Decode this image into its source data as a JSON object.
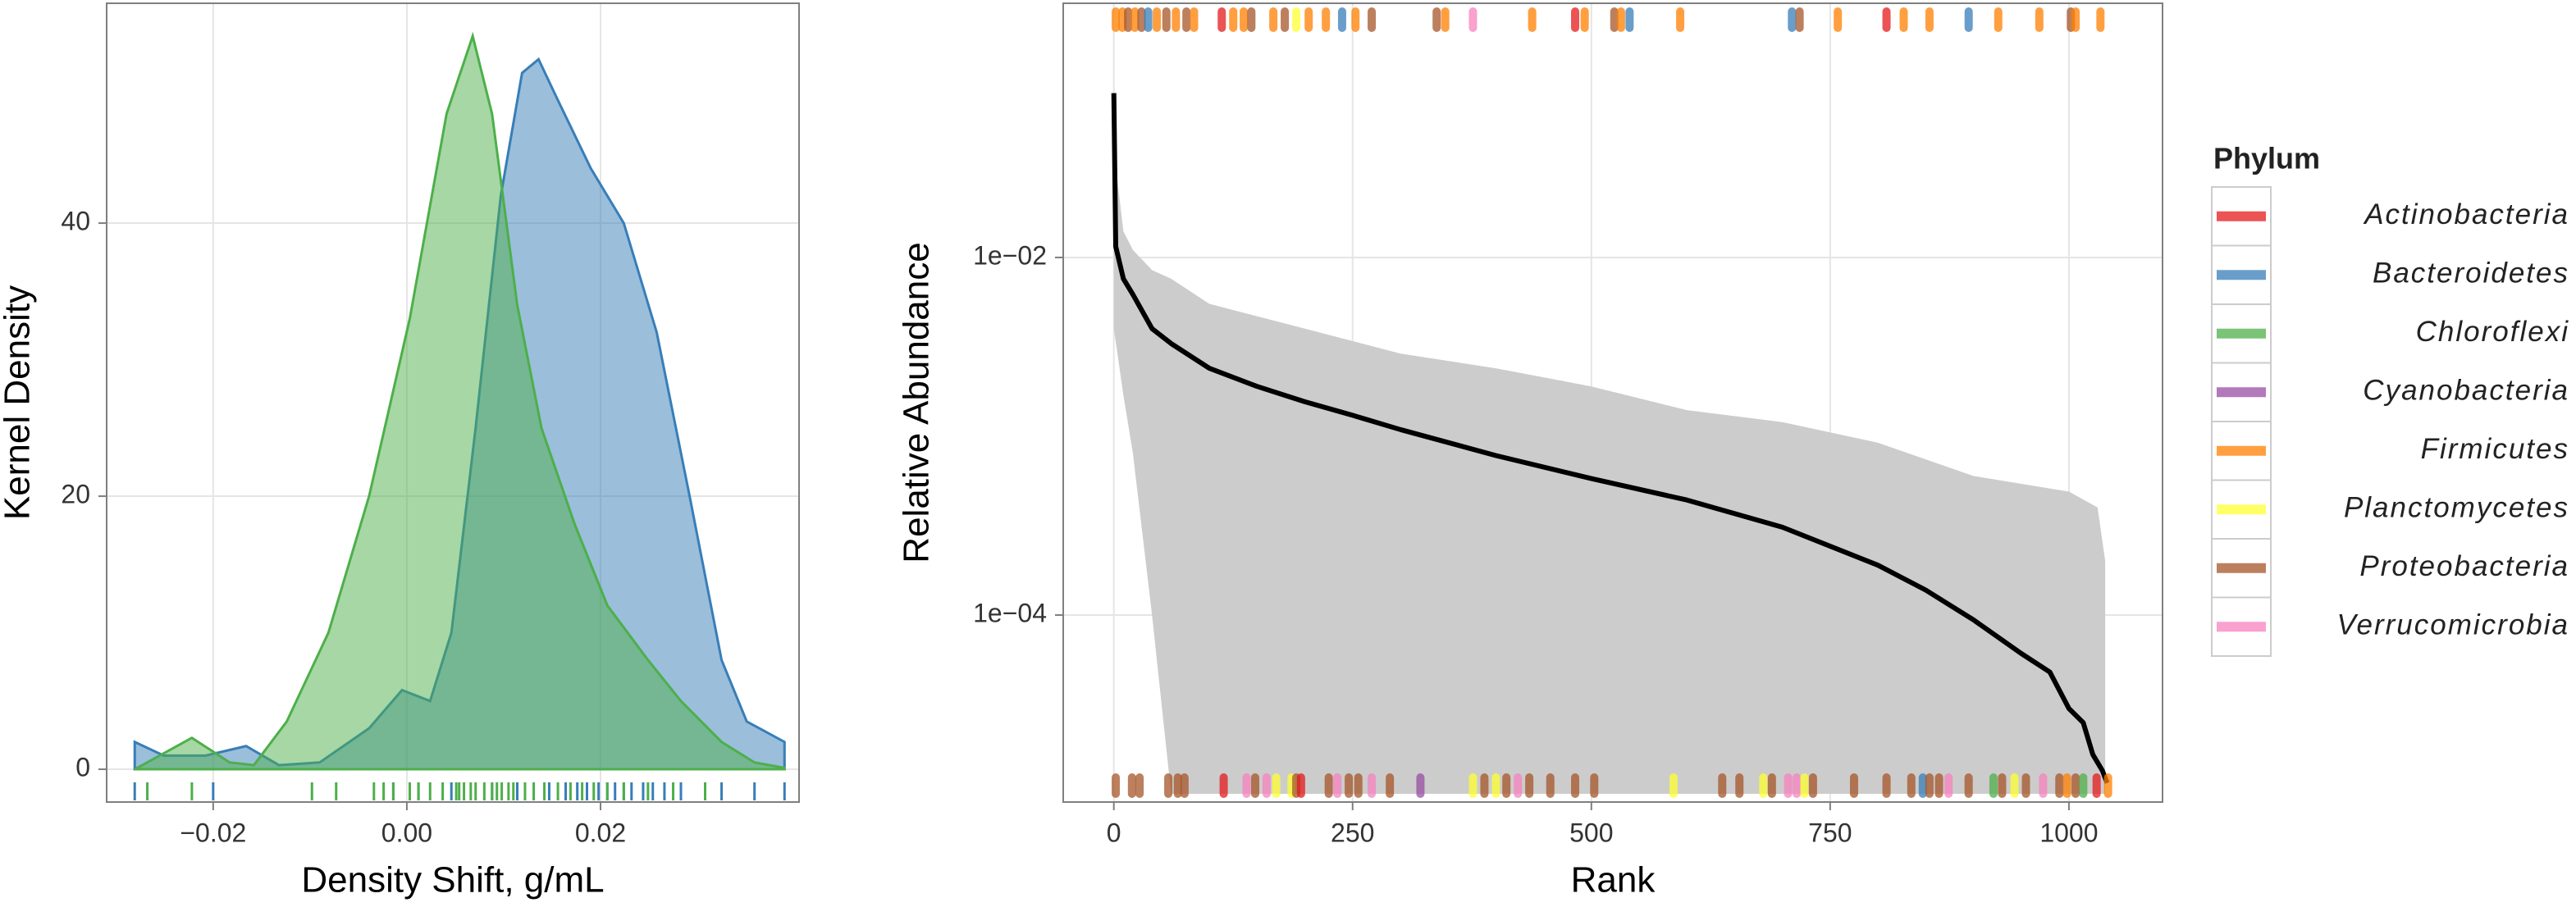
{
  "chart_data": [
    {
      "type": "density",
      "x_label": "Density Shift, g/mL",
      "y_label": "Kernel Density",
      "xlim": [
        -0.031,
        0.0405
      ],
      "ylim": [
        -2.4,
        56.1
      ],
      "xticks": [
        {
          "value": -0.02,
          "label": "−0.02"
        },
        {
          "value": 0,
          "label": "0.00"
        },
        {
          "value": 0.02,
          "label": "0.02"
        }
      ],
      "yticks": [
        0,
        20,
        40
      ],
      "grid": true,
      "series": [
        {
          "color": "#377eb8",
          "x": [
            -0.0281,
            -0.0251,
            -0.0208,
            -0.0166,
            -0.0132,
            -0.009,
            -0.0039,
            -0.0005,
            0.0024,
            0.0046,
            0.0071,
            0.0097,
            0.0119,
            0.0136,
            0.0156,
            0.019,
            0.0224,
            0.0258,
            0.0292,
            0.0325,
            0.0351,
            0.039
          ],
          "values": [
            2,
            1,
            1,
            1.7,
            0.3,
            0.5,
            3,
            5.8,
            5,
            10,
            25,
            42,
            51,
            52,
            49,
            44,
            40,
            32,
            20,
            8,
            3.5,
            2
          ],
          "rug": [
            -0.0281,
            -0.02,
            -0.0014,
            0.0012,
            0.0046,
            0.0088,
            0.0114,
            0.0147,
            0.0164,
            0.0176,
            0.0186,
            0.0198,
            0.0207,
            0.0215,
            0.0224,
            0.0232,
            0.0244,
            0.0254,
            0.0266,
            0.0283,
            0.0308,
            0.0325,
            0.0359,
            0.039
          ]
        },
        {
          "color": "#4daf4a",
          "x": [
            -0.0281,
            -0.0222,
            -0.0183,
            -0.0158,
            -0.0124,
            -0.0081,
            -0.0039,
            0.0003,
            0.0041,
            0.0068,
            0.0088,
            0.0114,
            0.0139,
            0.0173,
            0.0207,
            0.0249,
            0.0283,
            0.0325,
            0.0359,
            0.039
          ],
          "values": [
            0,
            2.3,
            0.5,
            0.3,
            3.5,
            10,
            20,
            33,
            48,
            53.7,
            48,
            34,
            25,
            18,
            12,
            8,
            5,
            2,
            0.5,
            0.1
          ],
          "rug": [
            -0.0268,
            -0.0222,
            -0.0098,
            -0.0073,
            -0.0034,
            -0.0024,
            -0.0014,
            0.0003,
            0.0012,
            0.0024,
            0.0037,
            0.0051,
            0.0054,
            0.0059,
            0.0066,
            0.0071,
            0.008,
            0.0088,
            0.0093,
            0.0098,
            0.0105,
            0.011,
            0.0122,
            0.0131,
            0.0142,
            0.0156,
            0.0169,
            0.0181,
            0.0193,
            0.0207,
            0.0224,
            0.0249,
            0.0275,
            0.0308
          ]
        }
      ]
    },
    {
      "type": "line",
      "x_label": "Rank",
      "y_label": "Relative Abundance",
      "xlim": [
        -53,
        1098
      ],
      "ylim": [
        9e-06,
        0.264
      ],
      "ylog": true,
      "xticks": [
        0,
        250,
        500,
        750,
        1000
      ],
      "yticks": [
        {
          "value": 0.01,
          "label": "1e−02"
        },
        {
          "value": 0.0001,
          "label": "1e−04"
        }
      ],
      "grid": true,
      "band": {
        "color": "#cccccc",
        "x": [
          0,
          10,
          20,
          40,
          60,
          100,
          200,
          300,
          400,
          500,
          600,
          700,
          800,
          900,
          1000,
          1030,
          1038
        ],
        "high": [
          0.04,
          0.014,
          0.011,
          0.0085,
          0.0076,
          0.0055,
          0.004,
          0.0029,
          0.0024,
          0.0019,
          0.0014,
          0.0012,
          0.00092,
          0.0006,
          0.00049,
          0.0004,
          0.0002
        ],
        "low": [
          0.004,
          0.0017,
          0.0008,
          0.0001,
          1e-05,
          1e-05,
          1e-05,
          1e-05,
          1e-05,
          1e-05,
          1e-05,
          1e-05,
          1e-05,
          1e-05,
          1e-05,
          1e-05,
          1e-05
        ]
      },
      "series": [
        {
          "color": "#000000",
          "x": [
            0,
            2,
            10,
            20,
            40,
            60,
            100,
            150,
            200,
            250,
            300,
            400,
            500,
            600,
            700,
            800,
            850,
            900,
            950,
            980,
            1000,
            1015,
            1025,
            1035,
            1040
          ],
          "values": [
            0.083,
            0.0115,
            0.0076,
            0.0062,
            0.004,
            0.0033,
            0.0024,
            0.0019,
            0.00156,
            0.00131,
            0.00109,
            0.00078,
            0.00058,
            0.00044,
            0.00031,
            0.00019,
            0.000138,
            9.4e-05,
            6.1e-05,
            4.8e-05,
            3e-05,
            2.5e-05,
            1.66e-05,
            1.35e-05,
            1.15e-05
          ]
        }
      ],
      "rug_top": {
        "x": [
          2,
          9,
          15,
          22,
          29,
          36,
          45,
          55,
          65,
          76,
          84,
          113,
          125,
          136,
          144,
          167,
          179,
          191,
          204,
          222,
          239,
          253,
          270,
          338,
          347,
          376,
          438,
          483,
          493,
          524,
          531,
          540,
          593,
          710,
          718,
          758,
          809,
          827,
          854,
          895,
          926,
          969,
          1002,
          1007,
          1033
        ],
        "group": [
          4,
          4,
          6,
          4,
          6,
          1,
          4,
          6,
          4,
          6,
          4,
          0,
          4,
          4,
          6,
          4,
          6,
          5,
          4,
          4,
          1,
          4,
          6,
          6,
          4,
          7,
          4,
          0,
          4,
          6,
          4,
          1,
          4,
          1,
          6,
          4,
          0,
          4,
          4,
          1,
          4,
          4,
          6,
          4,
          4
        ]
      },
      "rug_bottom": {
        "x": [
          2,
          19,
          27,
          57,
          67,
          74,
          115,
          139,
          148,
          160,
          170,
          186,
          191,
          196,
          225,
          234,
          246,
          256,
          270,
          289,
          321,
          376,
          388,
          400,
          411,
          423,
          435,
          457,
          483,
          503,
          586,
          637,
          655,
          680,
          689,
          706,
          715,
          723,
          732,
          775,
          809,
          835,
          847,
          854,
          864,
          874,
          895,
          921,
          930,
          943,
          955,
          973,
          990,
          998,
          1007,
          1015,
          1029,
          1041
        ],
        "group": [
          6,
          6,
          6,
          6,
          6,
          6,
          0,
          7,
          6,
          7,
          5,
          5,
          6,
          0,
          6,
          7,
          6,
          6,
          7,
          6,
          3,
          5,
          6,
          5,
          6,
          7,
          6,
          6,
          6,
          6,
          5,
          6,
          6,
          5,
          6,
          7,
          7,
          5,
          6,
          6,
          6,
          6,
          1,
          6,
          6,
          7,
          6,
          2,
          6,
          5,
          6,
          7,
          6,
          4,
          6,
          2,
          0,
          4
        ]
      },
      "legend": {
        "title": "Phylum",
        "position": "right",
        "entries": [
          {
            "name": "Actinobacteria",
            "color": "#e41a1c"
          },
          {
            "name": "Bacteroidetes",
            "color": "#377eb8"
          },
          {
            "name": "Chloroflexi",
            "color": "#4daf4a"
          },
          {
            "name": "Cyanobacteria",
            "color": "#984ea3"
          },
          {
            "name": "Firmicutes",
            "color": "#ff7f00"
          },
          {
            "name": "Planctomycetes",
            "color": "#ffff33"
          },
          {
            "name": "Proteobacteria",
            "color": "#a65628"
          },
          {
            "name": "Verrucomicrobia",
            "color": "#f781bf"
          }
        ]
      }
    }
  ]
}
